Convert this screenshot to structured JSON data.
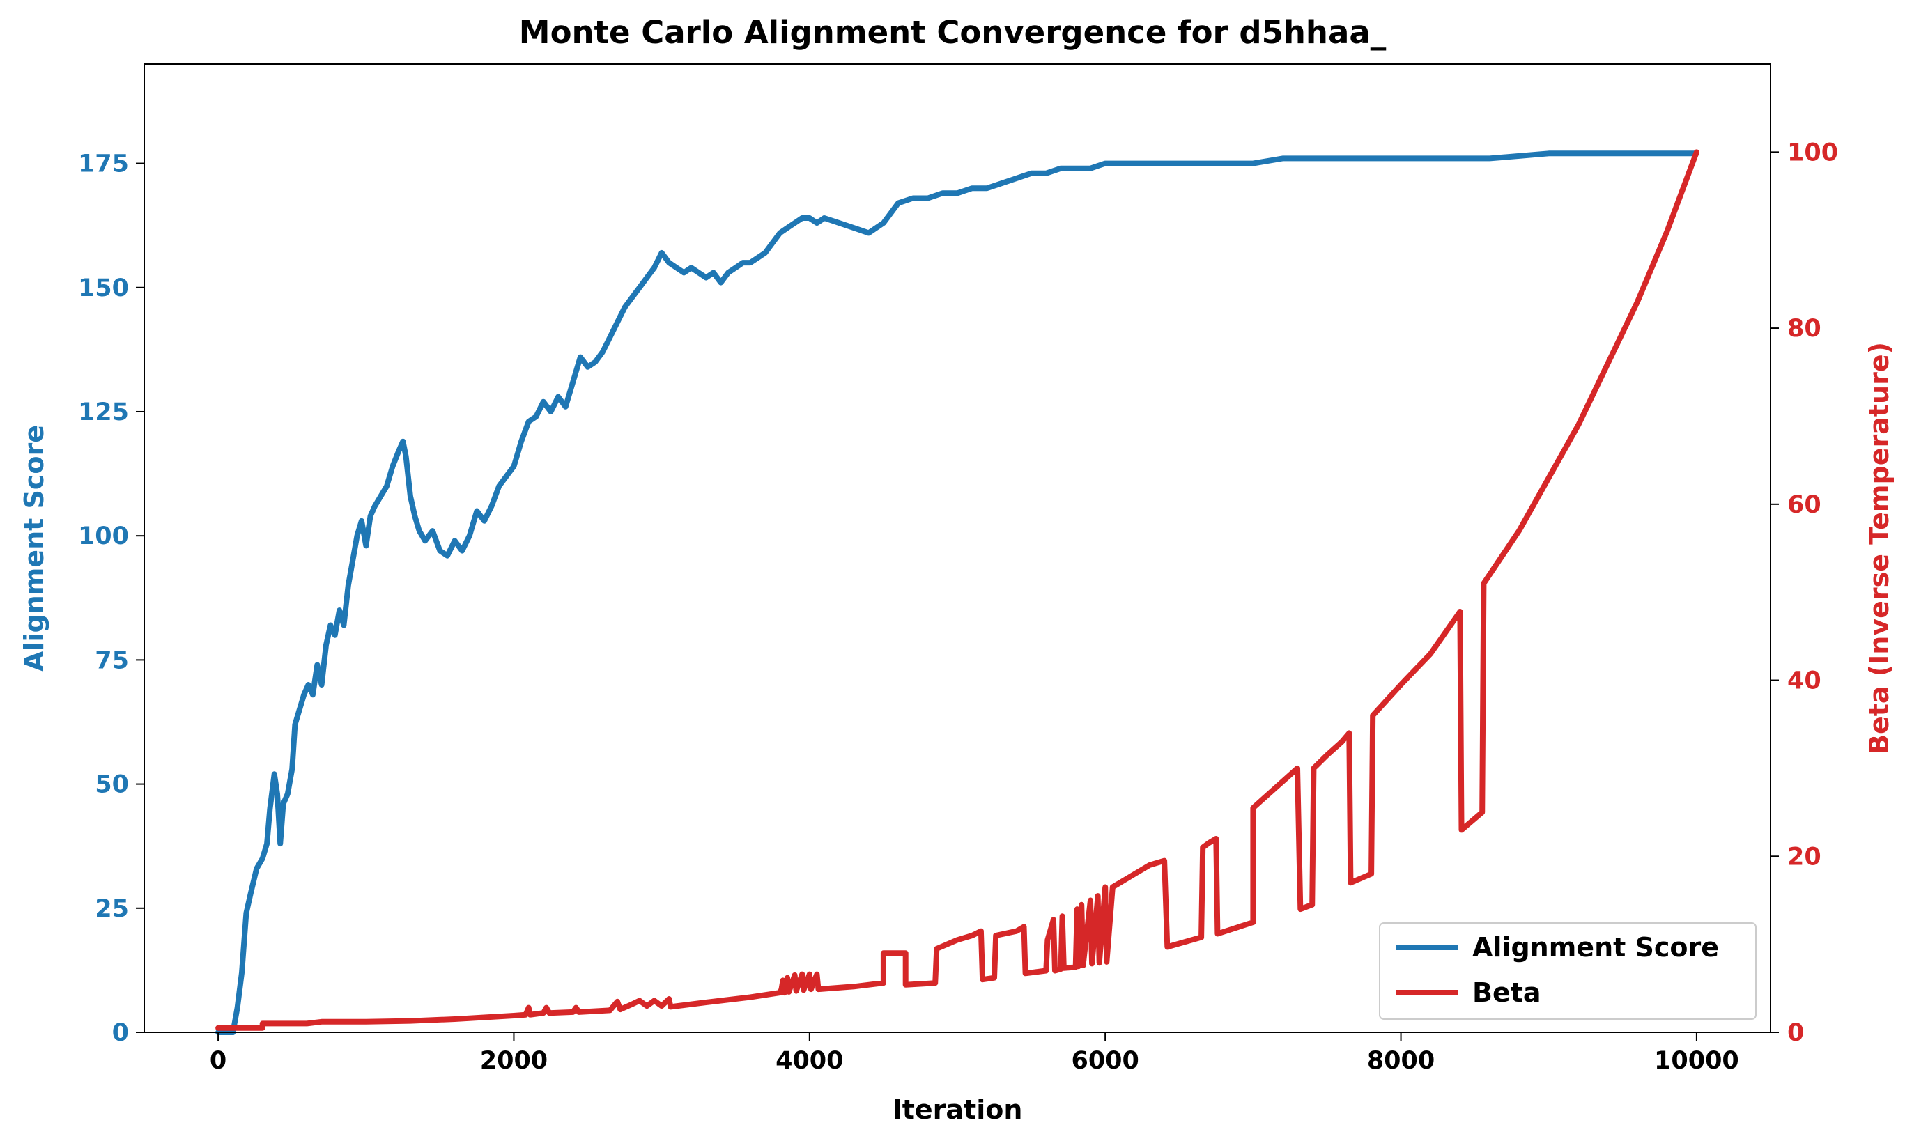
{
  "chart_data": {
    "type": "line",
    "title": "Monte Carlo Alignment Convergence for d5hhaa_",
    "xlabel": "Iteration",
    "ylabel_left": "Alignment Score",
    "ylabel_right": "Beta (Inverse Temperature)",
    "xlim": [
      -500,
      10500
    ],
    "ylim_left": [
      0,
      195
    ],
    "ylim_right": [
      0,
      110
    ],
    "x_ticks": [
      0,
      2000,
      4000,
      6000,
      8000,
      10000
    ],
    "y_ticks_left": [
      0,
      25,
      50,
      75,
      100,
      125,
      150,
      175
    ],
    "y_ticks_right": [
      0,
      20,
      40,
      60,
      80,
      100
    ],
    "grid": false,
    "legend_position": "lower-right",
    "colors": {
      "score": "#1f77b4",
      "beta": "#d62728"
    },
    "series": [
      {
        "name": "Alignment Score",
        "axis": "left",
        "color": "#1f77b4",
        "points": [
          [
            0,
            0
          ],
          [
            100,
            0
          ],
          [
            130,
            5
          ],
          [
            160,
            12
          ],
          [
            190,
            24
          ],
          [
            220,
            28
          ],
          [
            260,
            33
          ],
          [
            300,
            35
          ],
          [
            330,
            38
          ],
          [
            350,
            45
          ],
          [
            380,
            52
          ],
          [
            400,
            48
          ],
          [
            420,
            38
          ],
          [
            440,
            46
          ],
          [
            470,
            48
          ],
          [
            500,
            53
          ],
          [
            520,
            62
          ],
          [
            550,
            65
          ],
          [
            580,
            68
          ],
          [
            610,
            70
          ],
          [
            640,
            68
          ],
          [
            670,
            74
          ],
          [
            700,
            70
          ],
          [
            730,
            78
          ],
          [
            760,
            82
          ],
          [
            790,
            80
          ],
          [
            820,
            85
          ],
          [
            850,
            82
          ],
          [
            880,
            90
          ],
          [
            910,
            95
          ],
          [
            940,
            100
          ],
          [
            970,
            103
          ],
          [
            1000,
            98
          ],
          [
            1030,
            104
          ],
          [
            1060,
            106
          ],
          [
            1100,
            108
          ],
          [
            1140,
            110
          ],
          [
            1180,
            114
          ],
          [
            1220,
            117
          ],
          [
            1250,
            119
          ],
          [
            1270,
            116
          ],
          [
            1300,
            108
          ],
          [
            1330,
            104
          ],
          [
            1360,
            101
          ],
          [
            1400,
            99
          ],
          [
            1450,
            101
          ],
          [
            1500,
            97
          ],
          [
            1550,
            96
          ],
          [
            1600,
            99
          ],
          [
            1650,
            97
          ],
          [
            1700,
            100
          ],
          [
            1750,
            105
          ],
          [
            1800,
            103
          ],
          [
            1850,
            106
          ],
          [
            1900,
            110
          ],
          [
            1950,
            112
          ],
          [
            2000,
            114
          ],
          [
            2050,
            119
          ],
          [
            2100,
            123
          ],
          [
            2150,
            124
          ],
          [
            2200,
            127
          ],
          [
            2250,
            125
          ],
          [
            2300,
            128
          ],
          [
            2350,
            126
          ],
          [
            2400,
            131
          ],
          [
            2450,
            136
          ],
          [
            2500,
            134
          ],
          [
            2550,
            135
          ],
          [
            2600,
            137
          ],
          [
            2650,
            140
          ],
          [
            2700,
            143
          ],
          [
            2750,
            146
          ],
          [
            2800,
            148
          ],
          [
            2850,
            150
          ],
          [
            2900,
            152
          ],
          [
            2950,
            154
          ],
          [
            3000,
            157
          ],
          [
            3050,
            155
          ],
          [
            3100,
            154
          ],
          [
            3150,
            153
          ],
          [
            3200,
            154
          ],
          [
            3250,
            153
          ],
          [
            3300,
            152
          ],
          [
            3350,
            153
          ],
          [
            3400,
            151
          ],
          [
            3450,
            153
          ],
          [
            3500,
            154
          ],
          [
            3550,
            155
          ],
          [
            3600,
            155
          ],
          [
            3650,
            156
          ],
          [
            3700,
            157
          ],
          [
            3750,
            159
          ],
          [
            3800,
            161
          ],
          [
            3850,
            162
          ],
          [
            3900,
            163
          ],
          [
            3950,
            164
          ],
          [
            4000,
            164
          ],
          [
            4050,
            163
          ],
          [
            4100,
            164
          ],
          [
            4200,
            163
          ],
          [
            4300,
            162
          ],
          [
            4400,
            161
          ],
          [
            4500,
            163
          ],
          [
            4600,
            167
          ],
          [
            4700,
            168
          ],
          [
            4800,
            168
          ],
          [
            4900,
            169
          ],
          [
            5000,
            169
          ],
          [
            5100,
            170
          ],
          [
            5200,
            170
          ],
          [
            5300,
            171
          ],
          [
            5400,
            172
          ],
          [
            5500,
            173
          ],
          [
            5600,
            173
          ],
          [
            5700,
            174
          ],
          [
            5800,
            174
          ],
          [
            5900,
            174
          ],
          [
            6000,
            175
          ],
          [
            6100,
            175
          ],
          [
            6200,
            175
          ],
          [
            6400,
            175
          ],
          [
            6600,
            175
          ],
          [
            6800,
            175
          ],
          [
            7000,
            175
          ],
          [
            7200,
            176
          ],
          [
            7400,
            176
          ],
          [
            7600,
            176
          ],
          [
            7800,
            176
          ],
          [
            8000,
            176
          ],
          [
            8200,
            176
          ],
          [
            8400,
            176
          ],
          [
            8600,
            176
          ],
          [
            8800,
            176.5
          ],
          [
            9000,
            177
          ],
          [
            9200,
            177
          ],
          [
            9400,
            177
          ],
          [
            9600,
            177
          ],
          [
            9800,
            177
          ],
          [
            10000,
            177
          ]
        ]
      },
      {
        "name": "Beta",
        "axis": "right",
        "color": "#d62728",
        "points": [
          [
            0,
            0.5
          ],
          [
            300,
            0.5
          ],
          [
            300,
            1.0
          ],
          [
            600,
            1.0
          ],
          [
            700,
            1.2
          ],
          [
            1000,
            1.2
          ],
          [
            1300,
            1.3
          ],
          [
            1600,
            1.5
          ],
          [
            2000,
            1.9
          ],
          [
            2080,
            2.0
          ],
          [
            2100,
            2.8
          ],
          [
            2110,
            2.0
          ],
          [
            2200,
            2.2
          ],
          [
            2220,
            2.8
          ],
          [
            2240,
            2.2
          ],
          [
            2400,
            2.3
          ],
          [
            2420,
            2.8
          ],
          [
            2440,
            2.3
          ],
          [
            2650,
            2.5
          ],
          [
            2700,
            3.5
          ],
          [
            2720,
            2.6
          ],
          [
            2800,
            3.2
          ],
          [
            2850,
            3.6
          ],
          [
            2900,
            3.0
          ],
          [
            2950,
            3.6
          ],
          [
            3000,
            3.0
          ],
          [
            3050,
            3.8
          ],
          [
            3060,
            2.9
          ],
          [
            3300,
            3.4
          ],
          [
            3600,
            4.0
          ],
          [
            3800,
            4.5
          ],
          [
            3810,
            4.9
          ],
          [
            3820,
            5.9
          ],
          [
            3830,
            4.5
          ],
          [
            3850,
            6.2
          ],
          [
            3860,
            4.6
          ],
          [
            3900,
            6.5
          ],
          [
            3910,
            4.7
          ],
          [
            3950,
            6.6
          ],
          [
            3960,
            4.8
          ],
          [
            4000,
            6.6
          ],
          [
            4010,
            4.9
          ],
          [
            4050,
            6.6
          ],
          [
            4060,
            4.9
          ],
          [
            4300,
            5.2
          ],
          [
            4500,
            5.6
          ],
          [
            4500,
            9.0
          ],
          [
            4650,
            9.0
          ],
          [
            4650,
            5.4
          ],
          [
            4850,
            5.6
          ],
          [
            4860,
            9.5
          ],
          [
            5000,
            10.5
          ],
          [
            5100,
            11.0
          ],
          [
            5160,
            11.5
          ],
          [
            5170,
            6.0
          ],
          [
            5250,
            6.2
          ],
          [
            5260,
            11.0
          ],
          [
            5400,
            11.5
          ],
          [
            5450,
            12.0
          ],
          [
            5460,
            6.7
          ],
          [
            5600,
            7.0
          ],
          [
            5610,
            10.5
          ],
          [
            5650,
            12.8
          ],
          [
            5660,
            7.0
          ],
          [
            5700,
            7.2
          ],
          [
            5710,
            13.2
          ],
          [
            5720,
            7.3
          ],
          [
            5800,
            7.4
          ],
          [
            5810,
            14.0
          ],
          [
            5820,
            7.5
          ],
          [
            5840,
            14.5
          ],
          [
            5850,
            7.6
          ],
          [
            5900,
            15.0
          ],
          [
            5910,
            7.8
          ],
          [
            5950,
            15.5
          ],
          [
            5960,
            7.9
          ],
          [
            6000,
            16.5
          ],
          [
            6010,
            8.0
          ],
          [
            6050,
            16.5
          ],
          [
            6100,
            17.0
          ],
          [
            6200,
            18.0
          ],
          [
            6300,
            19.0
          ],
          [
            6400,
            19.5
          ],
          [
            6420,
            9.7
          ],
          [
            6650,
            10.8
          ],
          [
            6660,
            21.0
          ],
          [
            6700,
            21.5
          ],
          [
            6750,
            22.0
          ],
          [
            6760,
            11.2
          ],
          [
            7000,
            12.5
          ],
          [
            7000,
            25.5
          ],
          [
            7100,
            27.0
          ],
          [
            7200,
            28.5
          ],
          [
            7300,
            30.0
          ],
          [
            7320,
            14.0
          ],
          [
            7400,
            14.5
          ],
          [
            7410,
            30.0
          ],
          [
            7500,
            31.5
          ],
          [
            7600,
            33.0
          ],
          [
            7650,
            34.0
          ],
          [
            7660,
            17.0
          ],
          [
            7800,
            18.0
          ],
          [
            7810,
            36.0
          ],
          [
            8000,
            39.5
          ],
          [
            8200,
            43.0
          ],
          [
            8400,
            47.8
          ],
          [
            8410,
            23.0
          ],
          [
            8550,
            25.0
          ],
          [
            8560,
            51.0
          ],
          [
            8800,
            57.0
          ],
          [
            9000,
            63.0
          ],
          [
            9200,
            69.0
          ],
          [
            9400,
            76.0
          ],
          [
            9600,
            83.0
          ],
          [
            9800,
            91.0
          ],
          [
            10000,
            100.0
          ]
        ]
      }
    ]
  }
}
